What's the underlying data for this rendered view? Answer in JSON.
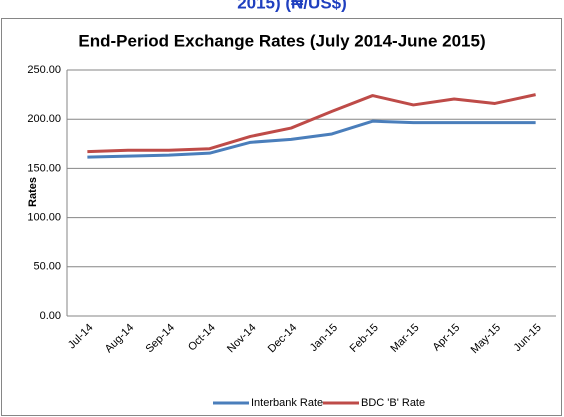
{
  "chart_data": {
    "type": "line",
    "caption": "2015) (₦/US$)",
    "title": "End-Period Exchange Rates (July 2014-June 2015)",
    "y_label": "Rates",
    "categories": [
      "Jul-14",
      "Aug-14",
      "Sep-14",
      "Oct-14",
      "Nov-14",
      "Dec-14",
      "Jan-15",
      "Feb-15",
      "Mar-15",
      "Apr-15",
      "May-15",
      "Jun-15"
    ],
    "series": [
      {
        "name": "Interbank Rate",
        "color": "#4a7ebb",
        "values": [
          161.5,
          162.5,
          163.5,
          165.5,
          176.5,
          179.5,
          185,
          198,
          196.5,
          196.5,
          196.5,
          196.5
        ]
      },
      {
        "name": "BDC 'B' Rate",
        "color": "#be4b48",
        "values": [
          167,
          168.5,
          168.5,
          170,
          182.5,
          191,
          208,
          224,
          214.5,
          220.5,
          216,
          225
        ]
      }
    ],
    "ylim": [
      0,
      250
    ],
    "yticks": [
      {
        "value": 0,
        "label": "0.00"
      },
      {
        "value": 50,
        "label": "50.00"
      },
      {
        "value": 100,
        "label": "100.00"
      },
      {
        "value": 150,
        "label": "150.00"
      },
      {
        "value": 200,
        "label": "200.00"
      },
      {
        "value": 250,
        "label": "250.00"
      }
    ],
    "grid": true,
    "legend": "bottom"
  }
}
